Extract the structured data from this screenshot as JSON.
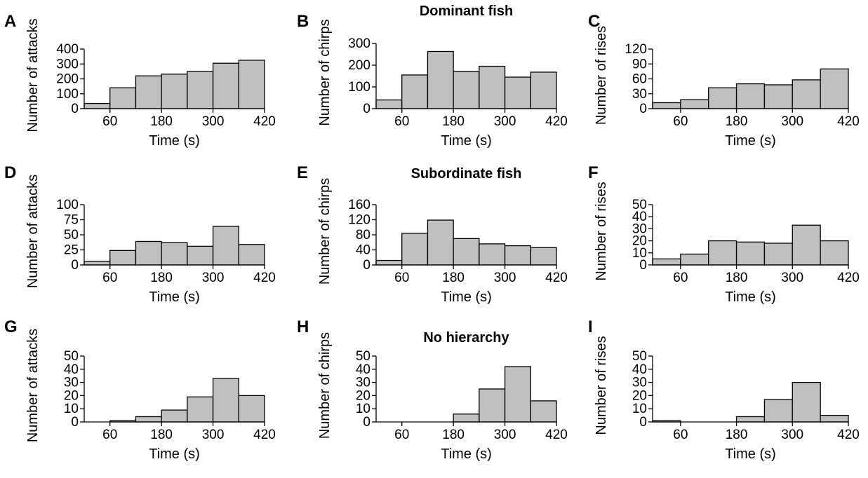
{
  "chart_data": [
    {
      "panel": "A",
      "type": "bar",
      "title": "",
      "xlabel": "Time (s)",
      "ylabel": "Number of attacks",
      "xticks": [
        60,
        180,
        300,
        420
      ],
      "yticks": [
        0,
        100,
        200,
        300,
        400
      ],
      "ylim": [
        0,
        400
      ],
      "bins": [
        [
          0,
          60
        ],
        [
          60,
          120
        ],
        [
          120,
          180
        ],
        [
          180,
          240
        ],
        [
          240,
          300
        ],
        [
          300,
          360
        ],
        [
          360,
          420
        ]
      ],
      "values": [
        35,
        140,
        220,
        232,
        250,
        305,
        325
      ]
    },
    {
      "panel": "B",
      "type": "bar",
      "title": "Dominant fish",
      "xlabel": "Time (s)",
      "ylabel": "Number of chirps",
      "xticks": [
        60,
        180,
        300,
        420
      ],
      "yticks": [
        0,
        100,
        200,
        300
      ],
      "ylim": [
        0,
        300
      ],
      "bins": [
        [
          0,
          60
        ],
        [
          60,
          120
        ],
        [
          120,
          180
        ],
        [
          180,
          240
        ],
        [
          240,
          300
        ],
        [
          300,
          360
        ],
        [
          360,
          420
        ]
      ],
      "values": [
        40,
        155,
        263,
        172,
        195,
        145,
        168
      ]
    },
    {
      "panel": "C",
      "type": "bar",
      "title": "",
      "xlabel": "Time (s)",
      "ylabel": "Number of rises",
      "xticks": [
        60,
        180,
        300,
        420
      ],
      "yticks": [
        0,
        30,
        60,
        90,
        120
      ],
      "ylim": [
        0,
        120
      ],
      "bins": [
        [
          0,
          60
        ],
        [
          60,
          120
        ],
        [
          120,
          180
        ],
        [
          180,
          240
        ],
        [
          240,
          300
        ],
        [
          300,
          360
        ],
        [
          360,
          420
        ]
      ],
      "values": [
        12,
        18,
        42,
        50,
        48,
        58,
        80
      ]
    },
    {
      "panel": "D",
      "type": "bar",
      "title": "",
      "xlabel": "Time (s)",
      "ylabel": "Number of attacks",
      "xticks": [
        60,
        180,
        300,
        420
      ],
      "yticks": [
        0,
        25,
        50,
        75,
        100
      ],
      "ylim": [
        0,
        100
      ],
      "bins": [
        [
          0,
          60
        ],
        [
          60,
          120
        ],
        [
          120,
          180
        ],
        [
          180,
          240
        ],
        [
          240,
          300
        ],
        [
          300,
          360
        ],
        [
          360,
          420
        ]
      ],
      "values": [
        6,
        24,
        39,
        37,
        31,
        64,
        34
      ]
    },
    {
      "panel": "E",
      "type": "bar",
      "title": "Subordinate fish",
      "xlabel": "Time (s)",
      "ylabel": "Number of chirps",
      "xticks": [
        60,
        180,
        300,
        420
      ],
      "yticks": [
        0,
        40,
        80,
        120,
        160
      ],
      "ylim": [
        0,
        160
      ],
      "bins": [
        [
          0,
          60
        ],
        [
          60,
          120
        ],
        [
          120,
          180
        ],
        [
          180,
          240
        ],
        [
          240,
          300
        ],
        [
          300,
          360
        ],
        [
          360,
          420
        ]
      ],
      "values": [
        12,
        84,
        119,
        70,
        56,
        51,
        46
      ]
    },
    {
      "panel": "F",
      "type": "bar",
      "title": "",
      "xlabel": "Time (s)",
      "ylabel": "Number of rises",
      "xticks": [
        60,
        180,
        300,
        420
      ],
      "yticks": [
        0,
        10,
        20,
        30,
        40,
        50
      ],
      "ylim": [
        0,
        50
      ],
      "bins": [
        [
          0,
          60
        ],
        [
          60,
          120
        ],
        [
          120,
          180
        ],
        [
          180,
          240
        ],
        [
          240,
          300
        ],
        [
          300,
          360
        ],
        [
          360,
          420
        ]
      ],
      "values": [
        5,
        9,
        20,
        19,
        18,
        33,
        20
      ]
    },
    {
      "panel": "G",
      "type": "bar",
      "title": "",
      "xlabel": "Time (s)",
      "ylabel": "Number of attacks",
      "xticks": [
        60,
        180,
        300,
        420
      ],
      "yticks": [
        0,
        10,
        20,
        30,
        40,
        50
      ],
      "ylim": [
        0,
        50
      ],
      "bins": [
        [
          60,
          120
        ],
        [
          120,
          180
        ],
        [
          180,
          240
        ],
        [
          240,
          300
        ],
        [
          300,
          360
        ],
        [
          360,
          420
        ]
      ],
      "values": [
        1,
        4,
        9,
        19,
        33,
        20
      ]
    },
    {
      "panel": "H",
      "type": "bar",
      "title": "No hierarchy",
      "xlabel": "Time (s)",
      "ylabel": "Number of chirps",
      "xticks": [
        60,
        180,
        300,
        420
      ],
      "yticks": [
        0,
        10,
        20,
        30,
        40,
        50
      ],
      "ylim": [
        0,
        50
      ],
      "bins": [
        [
          180,
          240
        ],
        [
          240,
          300
        ],
        [
          300,
          360
        ],
        [
          360,
          420
        ]
      ],
      "values": [
        6,
        25,
        42,
        16
      ]
    },
    {
      "panel": "I",
      "type": "bar",
      "title": "",
      "xlabel": "Time (s)",
      "ylabel": "Number of rises",
      "xticks": [
        60,
        180,
        300,
        420
      ],
      "yticks": [
        0,
        10,
        20,
        30,
        40,
        50
      ],
      "ylim": [
        0,
        50
      ],
      "bins": [
        [
          0,
          60
        ],
        [
          180,
          240
        ],
        [
          240,
          300
        ],
        [
          300,
          360
        ],
        [
          360,
          420
        ]
      ],
      "values": [
        1,
        4,
        17,
        30,
        5
      ]
    }
  ]
}
